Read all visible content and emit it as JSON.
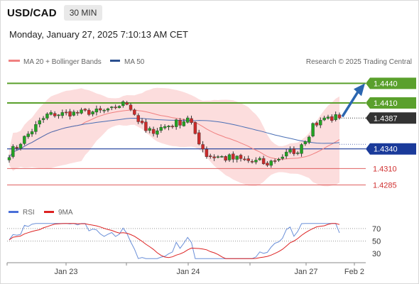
{
  "header": {
    "symbol": "USD/CAD",
    "timeframe": "30 MIN"
  },
  "datetime": "Monday, January 27, 2025 7:10:13 AM CET",
  "legend": {
    "ma20_label": "MA 20 + Bollinger Bands",
    "ma50_label": "MA 50"
  },
  "credit": "Research © 2025 Trading Central",
  "rsi_legend": {
    "rsi_label": "RSI",
    "ma_label": "9MA"
  },
  "colors": {
    "up": "#22a322",
    "down": "#cc2a2a",
    "ma20": "#f08080",
    "ma50": "#4a6fb5",
    "band": "#fbd5d5",
    "level_green": "#5aa02c",
    "level_blue": "#1a3a9a",
    "level_red": "#e06060",
    "rsi": "#6a8fd8",
    "rsi_ma": "#dd2222"
  },
  "chart_data": {
    "type": "candlestick",
    "instrument": "USD/CAD",
    "ylim": [
      1.4265,
      1.4462
    ],
    "current_price": 1.4387,
    "levels": [
      {
        "value": 1.444,
        "label": "1.4440",
        "kind": "target"
      },
      {
        "value": 1.441,
        "label": "1.4410",
        "kind": "target"
      },
      {
        "value": 1.434,
        "label": "1.4340",
        "kind": "pivot"
      },
      {
        "value": 1.431,
        "label": "1.4310",
        "kind": "support"
      },
      {
        "value": 1.4285,
        "label": "1.4285",
        "kind": "support"
      }
    ],
    "current_label": "1.4387",
    "x_ticks": [
      "Jan 23",
      "Jan 24",
      "Jan 27",
      "Feb 2"
    ],
    "segments": [
      {
        "from": 0,
        "to": 10,
        "start": 1.4333,
        "end": 1.4392,
        "amp": 0.0006
      },
      {
        "from": 10,
        "to": 26,
        "start": 1.4392,
        "end": 1.4398,
        "amp": 0.0005
      },
      {
        "from": 26,
        "to": 31,
        "start": 1.4398,
        "end": 1.4412,
        "amp": 0.0004
      },
      {
        "from": 31,
        "to": 36,
        "start": 1.4412,
        "end": 1.4365,
        "amp": 0.0006
      },
      {
        "from": 36,
        "to": 47,
        "start": 1.4365,
        "end": 1.4385,
        "amp": 0.0006
      },
      {
        "from": 47,
        "to": 52,
        "start": 1.4385,
        "end": 1.433,
        "amp": 0.0007
      },
      {
        "from": 52,
        "to": 68,
        "start": 1.433,
        "end": 1.4318,
        "amp": 0.0007
      },
      {
        "from": 68,
        "to": 76,
        "start": 1.4318,
        "end": 1.434,
        "amp": 0.0006
      },
      {
        "from": 76,
        "to": 82,
        "start": 1.434,
        "end": 1.4388,
        "amp": 0.0007
      },
      {
        "from": 82,
        "to": 88,
        "start": 1.4388,
        "end": 1.4387,
        "amp": 0.0006
      }
    ],
    "candle_count": 88,
    "forecast_arrow": {
      "from": 1.4387,
      "to": 1.444
    },
    "rsi": {
      "ylim": [
        20,
        80
      ],
      "ticks": [
        70,
        50,
        30
      ],
      "dotted_levels": [
        70,
        50
      ],
      "last": 63
    }
  }
}
